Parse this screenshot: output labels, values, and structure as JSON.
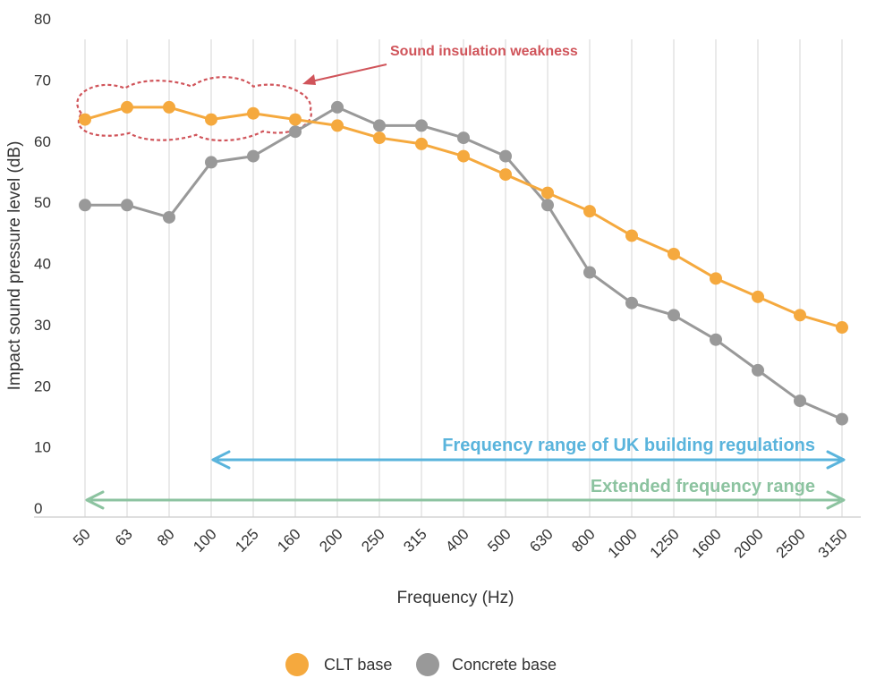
{
  "chart_data": {
    "type": "line",
    "title": "",
    "xlabel": "Frequency (Hz)",
    "ylabel": "Impact sound pressure level (dB)",
    "categories": [
      "50",
      "63",
      "80",
      "100",
      "125",
      "160",
      "200",
      "250",
      "315",
      "400",
      "500",
      "630",
      "800",
      "1000",
      "1250",
      "1600",
      "2000",
      "2500",
      "3150"
    ],
    "ylim": [
      0,
      80
    ],
    "yticks": [
      0,
      10,
      20,
      30,
      40,
      50,
      60,
      70,
      80
    ],
    "grid": "vertical",
    "legend_position": "bottom",
    "series": [
      {
        "name": "CLT base",
        "color": "#F5A93E",
        "values": [
          65,
          67,
          67,
          65,
          66,
          65,
          64,
          62,
          61,
          59,
          56,
          53,
          50,
          46,
          43,
          39,
          36,
          33,
          31
        ]
      },
      {
        "name": "Concrete base",
        "color": "#999999",
        "values": [
          51,
          51,
          49,
          58,
          59,
          63,
          67,
          64,
          64,
          62,
          59,
          51,
          40,
          35,
          33,
          29,
          24,
          19,
          16
        ]
      }
    ],
    "annotations": [
      {
        "text": "Sound insulation weakness",
        "color": "#D0545A",
        "kind": "cloud",
        "from": "50",
        "to": "160"
      },
      {
        "text": "Frequency range of UK building regulations",
        "color": "#5AB4DC",
        "kind": "range-arrow",
        "from": "100",
        "to": "3150"
      },
      {
        "text": "Extended frequency range",
        "color": "#8CC3A0",
        "kind": "range-arrow",
        "from": "50",
        "to": "3150"
      }
    ]
  }
}
